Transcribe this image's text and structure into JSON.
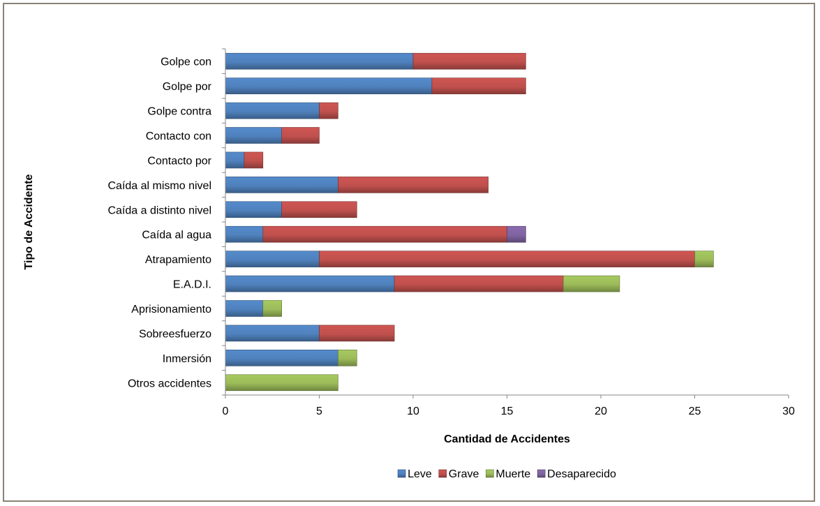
{
  "chart_data": {
    "type": "bar",
    "orientation": "horizontal",
    "stacked": true,
    "categories": [
      "Golpe con",
      "Golpe por",
      "Golpe contra",
      "Contacto con",
      "Contacto por",
      "Caída al mismo nivel",
      "Caída a distinto nivel",
      "Caída al agua",
      "Atrapamiento",
      "E.A.D.I.",
      "Aprisionamiento",
      "Sobreesfuerzo",
      "Inmersión",
      "Otros accidentes"
    ],
    "series": [
      {
        "name": "Leve",
        "color": "#4f81bd",
        "values": [
          10,
          11,
          5,
          3,
          1,
          6,
          3,
          2,
          5,
          9,
          2,
          5,
          6,
          0
        ]
      },
      {
        "name": "Grave",
        "color": "#c0504d",
        "values": [
          6,
          5,
          1,
          2,
          1,
          8,
          4,
          13,
          20,
          9,
          0,
          4,
          0,
          0
        ]
      },
      {
        "name": "Muerte",
        "color": "#9bbb59",
        "values": [
          0,
          0,
          0,
          0,
          0,
          0,
          0,
          0,
          1,
          3,
          1,
          0,
          1,
          6
        ]
      },
      {
        "name": "Desaparecido",
        "color": "#8064a2",
        "values": [
          0,
          0,
          0,
          0,
          0,
          0,
          0,
          1,
          0,
          0,
          0,
          0,
          0,
          0
        ]
      }
    ],
    "xlabel": "Cantidad de Accidentes",
    "ylabel": "Tipo de Accidente",
    "xlim": [
      0,
      30
    ],
    "xticks": [
      0,
      5,
      10,
      15,
      20,
      25,
      30
    ],
    "grid": false,
    "legend": "bottom"
  }
}
